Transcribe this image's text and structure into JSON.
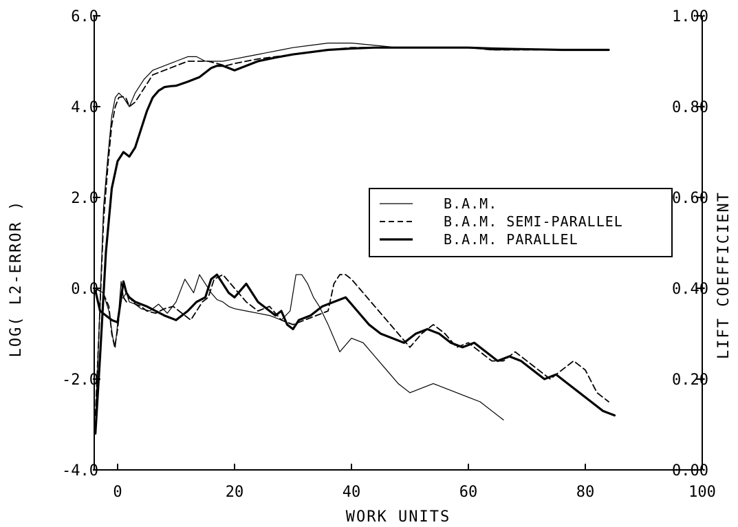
{
  "chart_data": {
    "type": "line",
    "xlabel": "WORK UNITS",
    "ylabel_left": "LOG( L2-ERROR )",
    "ylabel_right": "LIFT COEFFICIENT",
    "xlim": [
      -4,
      100
    ],
    "ylim_left": [
      -4,
      6
    ],
    "ylim_right": [
      0,
      1
    ],
    "x_ticks": [
      0,
      20,
      40,
      60,
      80,
      100
    ],
    "y_ticks_left": [
      -4,
      -2,
      0,
      2,
      4,
      6
    ],
    "y_ticks_right": [
      0,
      0.2,
      0.4,
      0.6,
      0.8,
      1.0
    ],
    "x_tick_labels": [
      "0",
      "20",
      "40",
      "60",
      "80",
      "100"
    ],
    "y_tick_labels_left": [
      "-4.0",
      "-2.0",
      "0.0",
      "2.0",
      "4.0",
      "6.0"
    ],
    "y_tick_labels_right": [
      "0.00",
      "0.20",
      "0.40",
      "0.60",
      "0.80",
      "1.00"
    ],
    "grid": false,
    "legend": {
      "placement": "center-right",
      "entries": [
        {
          "label": "B.A.M.",
          "style": "thin"
        },
        {
          "label": "B.A.M. SEMI-PARALLEL",
          "style": "dashed"
        },
        {
          "label": "B.A.M. PARALLEL",
          "style": "thick"
        }
      ]
    },
    "series": [
      {
        "label_ref": 0,
        "style": "thin",
        "axis": "right",
        "x": [
          -3.8,
          -3.2,
          -2.4,
          -1.6,
          -1.0,
          -0.4,
          0.2,
          1.0,
          2.0,
          3.0,
          4.5,
          6,
          8,
          10,
          12,
          13.5,
          15,
          16.5,
          18,
          20,
          22,
          24,
          26,
          28,
          30,
          33,
          36,
          40,
          44,
          48,
          52,
          56,
          60,
          64,
          68,
          72,
          76,
          80,
          84
        ],
        "y": [
          0.1,
          0.3,
          0.58,
          0.7,
          0.78,
          0.82,
          0.83,
          0.82,
          0.8,
          0.83,
          0.86,
          0.88,
          0.89,
          0.9,
          0.91,
          0.91,
          0.9,
          0.9,
          0.9,
          0.905,
          0.91,
          0.915,
          0.92,
          0.925,
          0.93,
          0.935,
          0.94,
          0.94,
          0.935,
          0.93,
          0.93,
          0.93,
          0.93,
          0.925,
          0.925,
          0.925,
          0.925,
          0.925,
          0.925
        ]
      },
      {
        "label_ref": 1,
        "style": "dashed",
        "axis": "right",
        "x": [
          -3.8,
          -3.2,
          -2.4,
          -1.6,
          -1.0,
          -0.4,
          0.2,
          0.8,
          1.4,
          2.0,
          3.0,
          4.5,
          6,
          8,
          10,
          12,
          14,
          15.5,
          17,
          18.5,
          20,
          22,
          24,
          27,
          30,
          33,
          36,
          40,
          44,
          48,
          52,
          56,
          60,
          64,
          68,
          72,
          76,
          80,
          84
        ],
        "y": [
          0.12,
          0.3,
          0.55,
          0.68,
          0.76,
          0.8,
          0.82,
          0.822,
          0.82,
          0.8,
          0.81,
          0.84,
          0.87,
          0.88,
          0.89,
          0.9,
          0.9,
          0.9,
          0.895,
          0.89,
          0.895,
          0.9,
          0.905,
          0.91,
          0.915,
          0.92,
          0.925,
          0.93,
          0.93,
          0.93,
          0.93,
          0.93,
          0.93,
          0.925,
          0.925,
          0.925,
          0.925,
          0.925,
          0.925
        ]
      },
      {
        "label_ref": 2,
        "style": "thick",
        "axis": "right",
        "x": [
          -3.8,
          -3.0,
          -2.0,
          -1.0,
          0.0,
          1.0,
          2.0,
          3.0,
          4.0,
          5.0,
          6.0,
          7.0,
          8.0,
          9.0,
          10,
          12,
          14,
          15,
          16,
          17,
          18,
          19,
          20,
          22,
          24,
          27,
          30,
          33,
          36,
          40,
          44,
          48,
          52,
          56,
          60,
          64,
          68,
          72,
          76,
          80,
          84
        ],
        "y": [
          0.08,
          0.25,
          0.48,
          0.62,
          0.68,
          0.7,
          0.69,
          0.71,
          0.75,
          0.79,
          0.82,
          0.835,
          0.843,
          0.845,
          0.846,
          0.855,
          0.865,
          0.875,
          0.885,
          0.89,
          0.89,
          0.885,
          0.88,
          0.89,
          0.9,
          0.908,
          0.915,
          0.92,
          0.925,
          0.928,
          0.93,
          0.93,
          0.93,
          0.93,
          0.93,
          0.928,
          0.927,
          0.926,
          0.925,
          0.925,
          0.925
        ]
      },
      {
        "label_ref": 0,
        "style": "thin",
        "axis": "left",
        "x": [
          -3.8,
          -2.5,
          -1.5,
          -0.8,
          -0.4,
          0.2,
          0.6,
          1.0,
          1.5,
          2.0,
          3.0,
          4.0,
          5.5,
          7.0,
          8.5,
          10,
          11.5,
          13,
          14,
          15,
          16,
          17,
          18,
          19,
          20,
          22,
          24,
          26,
          28,
          29.5,
          30.5,
          31.5,
          32.5,
          33.5,
          34.5,
          36,
          38,
          40,
          42,
          44,
          46,
          48,
          50,
          52,
          54,
          56,
          58,
          60,
          62,
          64,
          66
        ],
        "y": [
          0,
          -0.1,
          -0.5,
          -1.1,
          -1.3,
          -0.5,
          0.15,
          -0.2,
          -0.1,
          -0.3,
          -0.35,
          -0.45,
          -0.5,
          -0.35,
          -0.55,
          -0.3,
          0.2,
          -0.1,
          0.3,
          0.1,
          -0.1,
          -0.25,
          -0.3,
          -0.4,
          -0.45,
          -0.5,
          -0.55,
          -0.6,
          -0.7,
          -0.5,
          0.3,
          0.3,
          0.1,
          -0.2,
          -0.4,
          -0.8,
          -1.4,
          -1.1,
          -1.2,
          -1.5,
          -1.8,
          -2.1,
          -2.3,
          -2.2,
          -2.1,
          -2.2,
          -2.3,
          -2.4,
          -2.5,
          -2.7,
          -2.9
        ]
      },
      {
        "label_ref": 1,
        "style": "dashed",
        "axis": "left",
        "x": [
          -3.8,
          -2.5,
          -1.5,
          -1.0,
          -0.5,
          0.0,
          0.5,
          1.0,
          1.5,
          2.0,
          3.0,
          4.0,
          5.0,
          6.5,
          8,
          9.5,
          11,
          12.5,
          13.5,
          14.5,
          15.5,
          16.5,
          18,
          20,
          22,
          24,
          26,
          28,
          30,
          32,
          34,
          36,
          37,
          38,
          39,
          40,
          42,
          44,
          46,
          48,
          50,
          52,
          54,
          56,
          58,
          60,
          62,
          64,
          66,
          68,
          70,
          72,
          74,
          76,
          78,
          80,
          82,
          84
        ],
        "y": [
          0,
          -0.1,
          -0.4,
          -1.0,
          -1.3,
          -0.9,
          -0.3,
          -0.2,
          -0.3,
          -0.2,
          -0.35,
          -0.4,
          -0.5,
          -0.55,
          -0.45,
          -0.4,
          -0.55,
          -0.7,
          -0.5,
          -0.3,
          -0.2,
          0.2,
          0.3,
          0,
          -0.3,
          -0.5,
          -0.4,
          -0.7,
          -0.8,
          -0.7,
          -0.6,
          -0.5,
          0.1,
          0.3,
          0.3,
          0.2,
          -0.1,
          -0.4,
          -0.7,
          -1.0,
          -1.3,
          -1.0,
          -0.8,
          -1.0,
          -1.3,
          -1.2,
          -1.4,
          -1.6,
          -1.6,
          -1.4,
          -1.6,
          -1.8,
          -2.0,
          -1.8,
          -1.6,
          -1.8,
          -2.3,
          -2.5
        ]
      },
      {
        "label_ref": 2,
        "style": "thick",
        "axis": "left",
        "x": [
          -3.8,
          -3.0,
          -2.0,
          -1.0,
          0.0,
          0.5,
          1.0,
          1.5,
          2.0,
          3.0,
          4.0,
          5.0,
          6.5,
          8,
          10,
          12,
          13.5,
          15,
          16,
          17,
          18,
          19,
          20,
          22,
          24,
          26,
          27,
          28,
          29,
          30,
          31,
          33,
          35,
          37,
          39,
          41,
          43,
          45,
          47,
          49,
          51,
          53,
          55,
          57,
          59,
          61,
          63,
          65,
          67,
          69,
          71,
          73,
          75,
          77,
          79,
          81,
          83,
          85
        ],
        "y": [
          -0.05,
          -0.5,
          -0.6,
          -0.7,
          -0.75,
          -0.3,
          0.15,
          -0.1,
          -0.2,
          -0.3,
          -0.35,
          -0.4,
          -0.5,
          -0.6,
          -0.7,
          -0.5,
          -0.3,
          -0.2,
          0.2,
          0.3,
          0.1,
          -0.1,
          -0.2,
          0.1,
          -0.3,
          -0.5,
          -0.6,
          -0.5,
          -0.8,
          -0.9,
          -0.7,
          -0.6,
          -0.4,
          -0.3,
          -0.2,
          -0.5,
          -0.8,
          -1.0,
          -1.1,
          -1.2,
          -1.0,
          -0.9,
          -1.0,
          -1.2,
          -1.3,
          -1.2,
          -1.4,
          -1.6,
          -1.5,
          -1.6,
          -1.8,
          -2.0,
          -1.9,
          -2.1,
          -2.3,
          -2.5,
          -2.7,
          -2.8
        ]
      }
    ]
  }
}
